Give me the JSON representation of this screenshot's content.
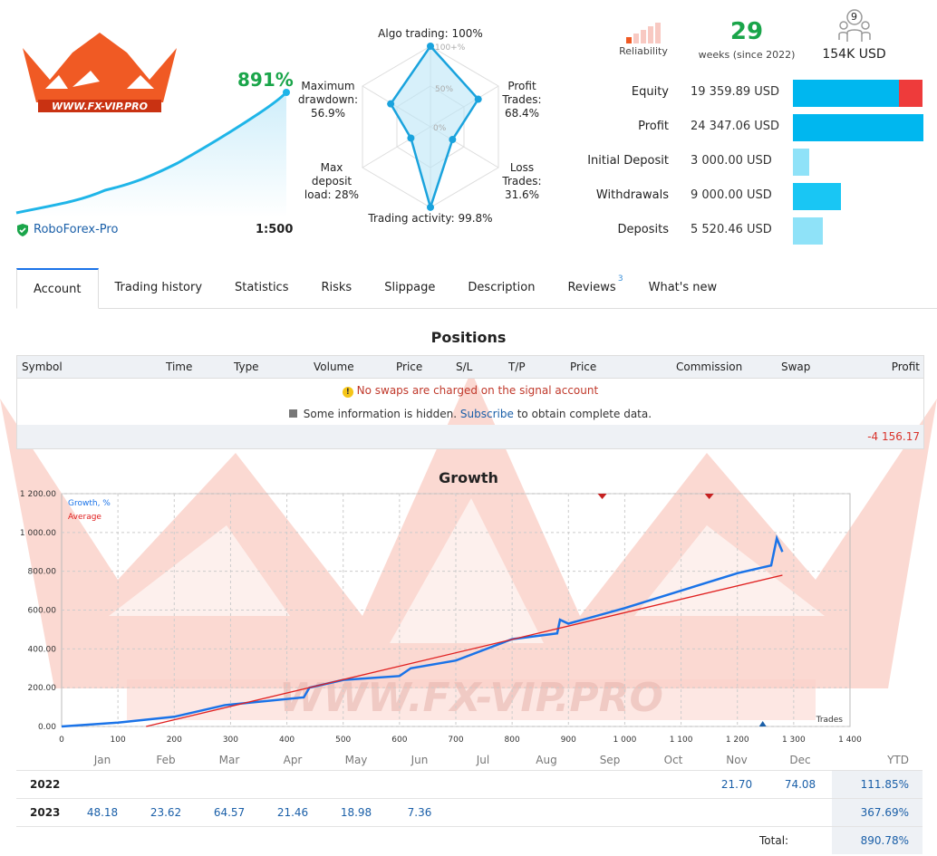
{
  "header": {
    "gain": "891%",
    "broker": "RoboForex-Pro",
    "leverage": "1:500",
    "logo_text": "WWW.FX-VIP.PRO",
    "reliability_label": "Reliability",
    "weeks_value": "29",
    "weeks_label": "weeks (since 2022)",
    "subscribers": "9",
    "subscribers_funds": "154K USD"
  },
  "radar": {
    "algo": "Algo trading: 100%",
    "profit_trades": [
      "Profit",
      "Trades:",
      "68.4%"
    ],
    "loss_trades": [
      "Loss",
      "Trades:",
      "31.6%"
    ],
    "activity": "Trading activity: 99.8%",
    "deposit_load": [
      "Max",
      "deposit",
      "load: 28%"
    ],
    "drawdown": [
      "Maximum",
      "drawdown:",
      "56.9%"
    ],
    "scale": [
      "100+%",
      "50%",
      "0%"
    ],
    "values": {
      "algo": 1.0,
      "profit_trades": 0.684,
      "loss_trades": 0.316,
      "activity": 0.998,
      "deposit_load": 0.28,
      "drawdown": 0.569
    }
  },
  "balances": [
    {
      "label": "Equity",
      "value": "19 359.89 USD",
      "fraction": 0.81,
      "loss_fraction": 0.18,
      "color": "#00b7ef"
    },
    {
      "label": "Profit",
      "value": "24 347.06 USD",
      "fraction": 1.0,
      "color": "#00b7ef"
    },
    {
      "label": "Initial Deposit",
      "value": "3 000.00 USD",
      "fraction": 0.123,
      "color": "#8fe2f8"
    },
    {
      "label": "Withdrawals",
      "value": "9 000.00 USD",
      "fraction": 0.37,
      "color": "#19c6f4"
    },
    {
      "label": "Deposits",
      "value": "5 520.46 USD",
      "fraction": 0.227,
      "color": "#8fe2f8"
    }
  ],
  "tabs": [
    {
      "label": "Account",
      "active": true
    },
    {
      "label": "Trading history"
    },
    {
      "label": "Statistics"
    },
    {
      "label": "Risks"
    },
    {
      "label": "Slippage"
    },
    {
      "label": "Description"
    },
    {
      "label": "Reviews",
      "badge": "3"
    },
    {
      "label": "What's new"
    }
  ],
  "positions": {
    "title": "Positions",
    "columns": [
      "Symbol",
      "Time",
      "Type",
      "Volume",
      "Price",
      "S/L",
      "T/P",
      "Price",
      "Commission",
      "Swap",
      "Profit"
    ],
    "notice": "No swaps are charged on the signal account",
    "hidden_pre": "Some information is hidden.",
    "hidden_link": "Subscribe",
    "hidden_post": "to obtain complete data.",
    "total_profit": "-4 156.17"
  },
  "growth": {
    "title": "Growth",
    "legend_growth": "Growth, %",
    "legend_average": "Average",
    "xlabel": "Trades",
    "yticks": [
      "0.00",
      "200.00",
      "400.00",
      "600.00",
      "800.00",
      "1 000.00",
      "1 200.00"
    ],
    "xticks": [
      "0",
      "100",
      "200",
      "300",
      "400",
      "500",
      "600",
      "700",
      "800",
      "900",
      "1 000",
      "1 100",
      "1 200",
      "1 300",
      "1 400"
    ]
  },
  "chart_data": {
    "type": "line",
    "title": "Growth",
    "xlabel": "Trades",
    "ylabel": "",
    "xlim": [
      0,
      1400
    ],
    "ylim": [
      0,
      1200
    ],
    "grid": true,
    "legend": "top-left",
    "series": [
      {
        "name": "Growth, %",
        "color": "#1a73e8",
        "x": [
          0,
          100,
          200,
          290,
          430,
          440,
          500,
          600,
          620,
          700,
          800,
          880,
          885,
          900,
          1000,
          1100,
          1200,
          1260,
          1270,
          1280
        ],
        "y": [
          0,
          20,
          50,
          110,
          150,
          200,
          240,
          260,
          300,
          340,
          450,
          480,
          550,
          530,
          610,
          700,
          790,
          830,
          970,
          900
        ]
      },
      {
        "name": "Average",
        "color": "#e02020",
        "x": [
          150,
          1280
        ],
        "y": [
          0,
          780
        ]
      }
    ]
  },
  "monthly": {
    "months": [
      "Jan",
      "Feb",
      "Mar",
      "Apr",
      "May",
      "Jun",
      "Jul",
      "Aug",
      "Sep",
      "Oct",
      "Nov",
      "Dec",
      "YTD"
    ],
    "rows": [
      {
        "year": "2022",
        "values": [
          "",
          "",
          "",
          "",
          "",
          "",
          "",
          "",
          "",
          "",
          "21.70",
          "74.08"
        ],
        "ytd": "111.85%"
      },
      {
        "year": "2023",
        "values": [
          "48.18",
          "23.62",
          "64.57",
          "21.46",
          "18.98",
          "7.36",
          "",
          "",
          "",
          "",
          "",
          ""
        ],
        "ytd": "367.69%"
      }
    ],
    "total_label": "Total:",
    "total_value": "890.78%"
  }
}
